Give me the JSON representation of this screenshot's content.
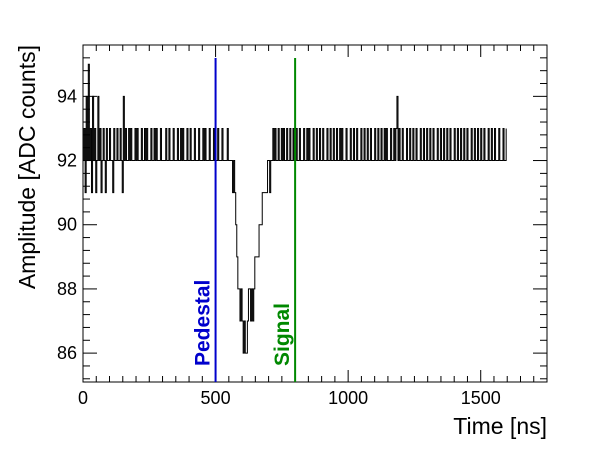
{
  "chart_data": {
    "type": "line",
    "xlabel": "Time [ns]",
    "ylabel": "Amplitude [ADC counts]",
    "xlim": [
      0,
      1750
    ],
    "ylim": [
      85.1,
      95.6
    ],
    "x_ticks": [
      0,
      500,
      1000,
      1500
    ],
    "y_ticks": [
      86,
      88,
      90,
      92,
      94
    ],
    "grid": false,
    "markers": [
      {
        "label": "Pedestal",
        "x": 500,
        "color": "#0000cc"
      },
      {
        "label": "Signal",
        "x": 800,
        "color": "#008800"
      }
    ],
    "series": [
      {
        "color": "#000000",
        "step": 4,
        "x_start": 0,
        "x_end": 1596,
        "values": [
          92,
          93,
          91,
          94,
          92,
          95,
          92,
          93,
          91,
          94,
          92,
          93,
          91,
          92,
          94,
          92,
          93,
          91,
          92,
          93,
          92,
          91,
          93,
          92,
          92,
          93,
          92,
          92,
          91,
          93,
          92,
          92,
          93,
          92,
          92,
          93,
          92,
          91,
          94,
          92,
          93,
          92,
          92,
          93,
          92,
          93,
          92,
          92,
          92,
          93,
          92,
          93,
          92,
          92,
          92,
          93,
          92,
          92,
          93,
          92,
          93,
          92,
          92,
          92,
          93,
          92,
          92,
          93,
          92,
          93,
          92,
          92,
          92,
          93,
          92,
          92,
          92,
          92,
          93,
          92,
          92,
          93,
          92,
          92,
          92,
          93,
          92,
          92,
          92,
          93,
          92,
          92,
          93,
          92,
          93,
          92,
          92,
          92,
          93,
          92,
          92,
          93,
          92,
          92,
          92,
          93,
          92,
          92,
          92,
          93,
          92,
          92,
          92,
          93,
          92,
          93,
          92,
          92,
          92,
          93,
          92,
          92,
          92,
          93,
          92,
          92,
          92,
          93,
          92,
          92,
          92,
          93,
          92,
          92,
          92,
          92,
          93,
          92,
          92,
          92,
          92,
          91,
          92,
          91,
          90,
          89,
          88,
          88,
          87,
          88,
          87,
          86,
          87,
          86,
          86,
          87,
          88,
          88,
          87,
          88,
          87,
          88,
          89,
          89,
          89,
          89,
          90,
          90,
          90,
          91,
          91,
          91,
          91,
          91,
          92,
          92,
          91,
          92,
          92,
          93,
          92,
          93,
          92,
          92,
          93,
          92,
          92,
          93,
          92,
          93,
          92,
          92,
          93,
          92,
          92,
          93,
          92,
          92,
          93,
          92,
          92,
          93,
          92,
          92,
          93,
          92,
          92,
          92,
          93,
          92,
          92,
          93,
          92,
          93,
          92,
          92,
          92,
          93,
          92,
          92,
          93,
          92,
          92,
          93,
          92,
          92,
          93,
          92,
          92,
          92,
          93,
          92,
          92,
          93,
          92,
          92,
          93,
          92,
          92,
          93,
          92,
          92,
          93,
          92,
          93,
          92,
          92,
          92,
          93,
          92,
          92,
          92,
          93,
          92,
          92,
          93,
          92,
          92,
          93,
          92,
          92,
          92,
          93,
          92,
          92,
          93,
          92,
          92,
          93,
          92,
          92,
          93,
          92,
          92,
          92,
          93,
          92,
          92,
          93,
          92,
          92,
          93,
          92,
          92,
          93,
          92,
          93,
          92,
          92,
          92,
          93,
          92,
          92,
          93,
          92,
          93,
          94,
          92,
          93,
          92,
          92,
          93,
          92,
          92,
          92,
          93,
          92,
          92,
          93,
          92,
          92,
          93,
          92,
          92,
          93,
          92,
          92,
          92,
          93,
          92,
          92,
          93,
          92,
          92,
          93,
          92,
          92,
          93,
          92,
          92,
          93,
          92,
          92,
          92,
          93,
          92,
          92,
          93,
          92,
          92,
          93,
          92,
          92,
          93,
          92,
          92,
          93,
          92,
          92,
          92,
          93,
          92,
          92,
          93,
          92,
          92,
          93,
          92,
          92,
          93,
          92,
          92,
          93,
          92,
          92,
          92,
          93,
          92,
          92,
          93,
          92,
          92,
          93,
          92,
          92,
          93,
          92,
          92,
          93,
          92,
          92,
          92,
          93,
          92,
          92,
          93,
          92,
          92,
          93,
          92,
          92,
          92,
          93,
          92,
          92,
          92,
          93,
          92,
          92,
          93
        ]
      }
    ]
  }
}
